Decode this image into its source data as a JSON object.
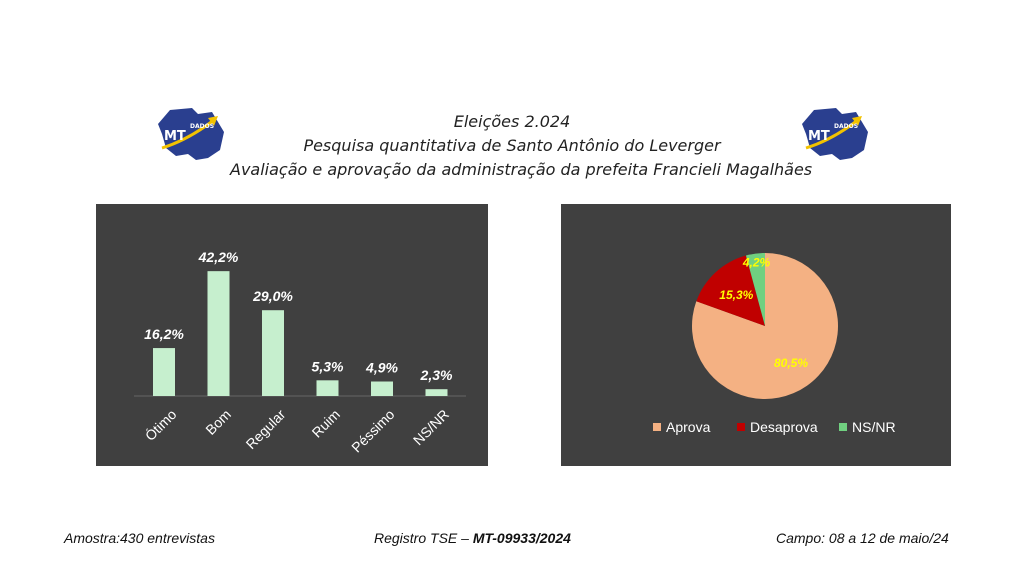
{
  "header": {
    "line1": "Eleições 2.024",
    "line2": "Pesquisa quantitativa de Santo Antônio do Leverger",
    "line3": "Avaliação e aprovação da administração da prefeita  Francieli Magalhães"
  },
  "logo": {
    "text_main": "MT",
    "text_sub": "DADOS"
  },
  "chart_data": [
    {
      "type": "bar",
      "categories": [
        "Ótimo",
        "Bom",
        "Regular",
        "Ruim",
        "Péssimo",
        "NS/NR"
      ],
      "values": [
        16.2,
        42.2,
        29.0,
        5.3,
        4.9,
        2.3
      ],
      "data_labels": [
        "16,2%",
        "42,2%",
        "29,0%",
        "5,3%",
        "4,9%",
        "2,3%"
      ],
      "ylim": [
        0,
        48
      ],
      "bar_color": "#c6efce",
      "background": "#404040",
      "grid": false,
      "legend": "none"
    },
    {
      "type": "pie",
      "categories": [
        "Aprova",
        "Desaprova",
        "NS/NR"
      ],
      "values": [
        80.5,
        15.3,
        4.2
      ],
      "data_labels": [
        "80,5%",
        "15,3%",
        "4,2%"
      ],
      "colors": [
        "#f4b183",
        "#c00000",
        "#70d080"
      ],
      "label_color": "#ffff00",
      "background": "#404040",
      "legend": "bottom"
    }
  ],
  "footer": {
    "amostra": "Amostra:430 entrevistas",
    "registro_prefix": "Registro TSE – ",
    "registro_code": "MT-09933/2024",
    "campo": "Campo: 08 a 12 de maio/24"
  }
}
